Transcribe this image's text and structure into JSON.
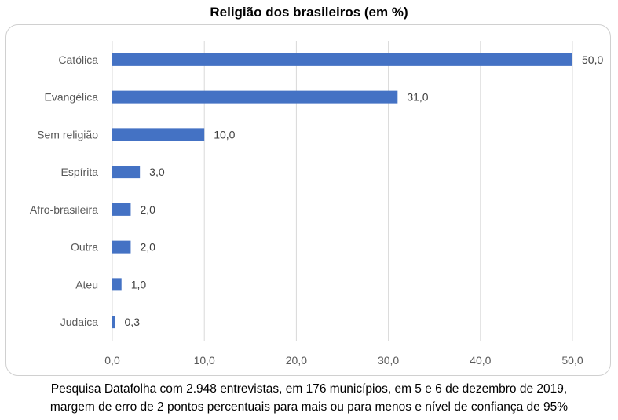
{
  "chart_data": {
    "type": "bar",
    "orientation": "horizontal",
    "title": "Religião dos brasileiros (em %)",
    "categories": [
      "Católica",
      "Evangélica",
      "Sem religião",
      "Espírita",
      "Afro-brasileira",
      "Outra",
      "Ateu",
      "Judaica"
    ],
    "values": [
      50.0,
      31.0,
      10.0,
      3.0,
      2.0,
      2.0,
      1.0,
      0.3
    ],
    "value_labels": [
      "50,0",
      "31,0",
      "10,0",
      "3,0",
      "2,0",
      "2,0",
      "1,0",
      "0,3"
    ],
    "xlim": [
      0,
      50
    ],
    "xticks": [
      0,
      10,
      20,
      30,
      40,
      50
    ],
    "xtick_labels": [
      "0,0",
      "10,0",
      "20,0",
      "30,0",
      "40,0",
      "50,0"
    ],
    "grid": true,
    "bar_color": "#4472C4",
    "grid_color": "#d9d9d9"
  },
  "footnote": {
    "line1": "Pesquisa Datafolha com 2.948 entrevistas, em 176 municípios, em 5 e 6 de dezembro de 2019,",
    "line2": "margem de erro de 2 pontos percentuais para mais ou para menos e nível de confiança de 95%"
  }
}
